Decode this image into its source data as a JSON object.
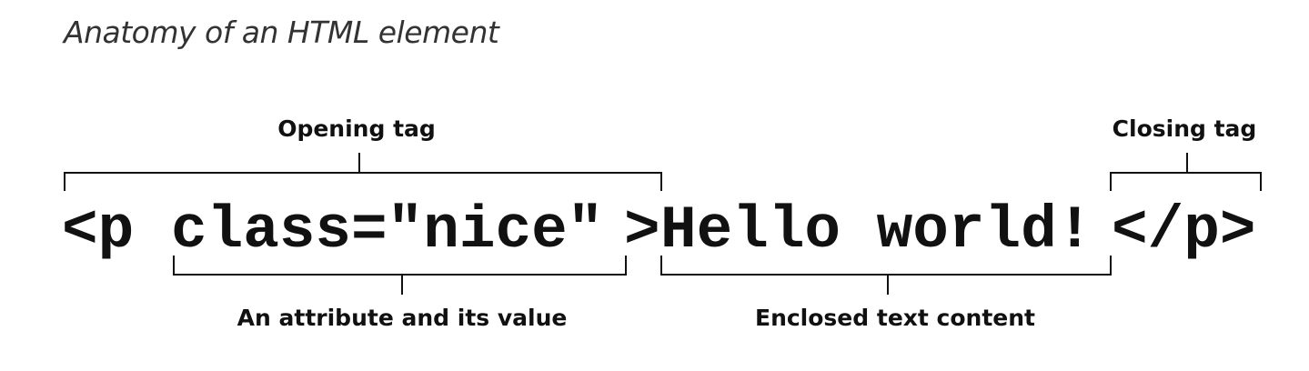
{
  "title": "Anatomy of an HTML element",
  "code": {
    "open_tag_start": "<p",
    "attribute": "class=\"nice\"",
    "open_tag_end": ">",
    "content": "Hello world!",
    "close_tag": "</p>"
  },
  "labels": {
    "opening_tag": "Opening tag",
    "closing_tag": "Closing tag",
    "attribute": "An attribute and its value",
    "content": "Enclosed text content"
  }
}
